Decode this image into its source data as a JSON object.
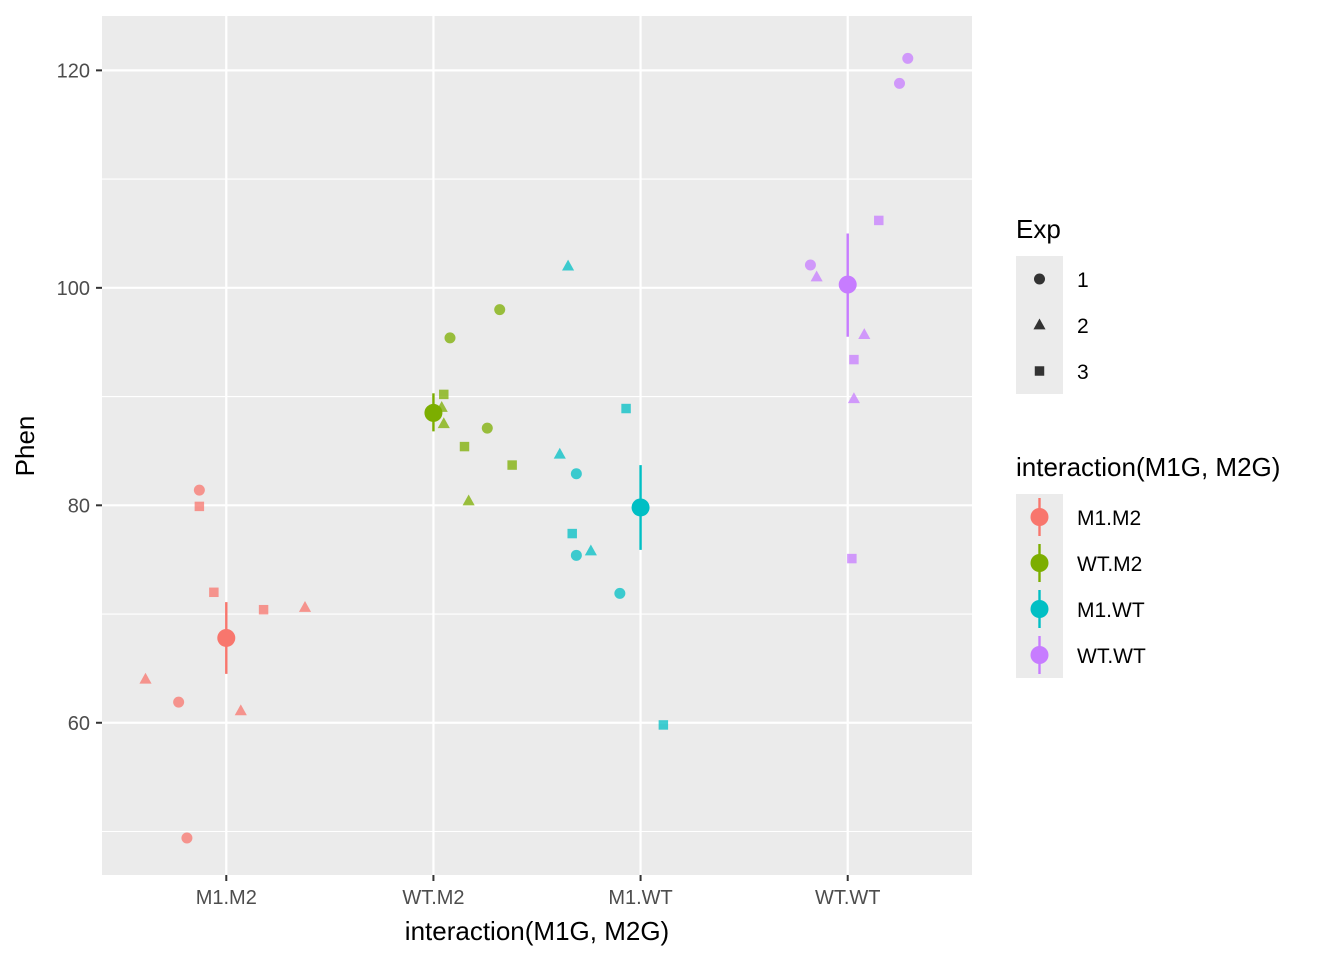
{
  "chart_data": {
    "type": "scatter",
    "title": "",
    "xlabel": "interaction(M1G, M2G)",
    "ylabel": "Phen",
    "categories": [
      "M1.M2",
      "WT.M2",
      "M1.WT",
      "WT.WT"
    ],
    "ylim": [
      46,
      125
    ],
    "yticks": [
      60,
      80,
      100,
      120
    ],
    "grid": true,
    "point_opacity": 0.75,
    "series": [
      {
        "name": "M1.M2",
        "color": "#F8766D",
        "mean": 67.8,
        "lower": 64.5,
        "upper": 71.1,
        "points": [
          {
            "x": -0.13,
            "y": 81.4,
            "exp": "1"
          },
          {
            "x": -0.23,
            "y": 61.9,
            "exp": "1"
          },
          {
            "x": -0.19,
            "y": 49.4,
            "exp": "1"
          },
          {
            "x": -0.39,
            "y": 64.0,
            "exp": "2"
          },
          {
            "x": 0.07,
            "y": 61.1,
            "exp": "2"
          },
          {
            "x": 0.38,
            "y": 70.6,
            "exp": "2"
          },
          {
            "x": -0.13,
            "y": 79.9,
            "exp": "3"
          },
          {
            "x": -0.06,
            "y": 72.0,
            "exp": "3"
          },
          {
            "x": 0.18,
            "y": 70.4,
            "exp": "3"
          }
        ]
      },
      {
        "name": "WT.M2",
        "color": "#7CAE00",
        "mean": 88.5,
        "lower": 86.8,
        "upper": 90.3,
        "points": [
          {
            "x": 0.08,
            "y": 95.4,
            "exp": "1"
          },
          {
            "x": 0.32,
            "y": 98.0,
            "exp": "1"
          },
          {
            "x": 0.26,
            "y": 87.1,
            "exp": "1"
          },
          {
            "x": 0.04,
            "y": 89.0,
            "exp": "2"
          },
          {
            "x": 0.05,
            "y": 87.5,
            "exp": "2"
          },
          {
            "x": 0.17,
            "y": 80.4,
            "exp": "2"
          },
          {
            "x": 0.05,
            "y": 90.2,
            "exp": "3"
          },
          {
            "x": 0.15,
            "y": 85.4,
            "exp": "3"
          },
          {
            "x": 0.38,
            "y": 83.7,
            "exp": "3"
          }
        ]
      },
      {
        "name": "M1.WT",
        "color": "#00BFC4",
        "mean": 79.8,
        "lower": 75.9,
        "upper": 83.7,
        "points": [
          {
            "x": -0.31,
            "y": 75.4,
            "exp": "1"
          },
          {
            "x": -0.31,
            "y": 82.9,
            "exp": "1"
          },
          {
            "x": -0.1,
            "y": 71.9,
            "exp": "1"
          },
          {
            "x": -0.35,
            "y": 102.0,
            "exp": "2"
          },
          {
            "x": -0.39,
            "y": 84.7,
            "exp": "2"
          },
          {
            "x": -0.24,
            "y": 75.8,
            "exp": "2"
          },
          {
            "x": -0.07,
            "y": 88.9,
            "exp": "3"
          },
          {
            "x": -0.33,
            "y": 77.4,
            "exp": "3"
          },
          {
            "x": 0.11,
            "y": 59.8,
            "exp": "3"
          }
        ]
      },
      {
        "name": "WT.WT",
        "color": "#C77CFF",
        "mean": 100.3,
        "lower": 95.5,
        "upper": 105.0,
        "points": [
          {
            "x": -0.18,
            "y": 102.1,
            "exp": "1"
          },
          {
            "x": 0.25,
            "y": 118.8,
            "exp": "1"
          },
          {
            "x": 0.29,
            "y": 121.1,
            "exp": "1"
          },
          {
            "x": -0.15,
            "y": 101.0,
            "exp": "2"
          },
          {
            "x": 0.08,
            "y": 95.7,
            "exp": "2"
          },
          {
            "x": 0.03,
            "y": 89.8,
            "exp": "2"
          },
          {
            "x": 0.15,
            "y": 106.2,
            "exp": "3"
          },
          {
            "x": 0.03,
            "y": 93.4,
            "exp": "3"
          },
          {
            "x": 0.02,
            "y": 75.1,
            "exp": "3"
          }
        ]
      }
    ],
    "legends": [
      {
        "title": "Exp",
        "type": "shape",
        "entries": [
          {
            "label": "1",
            "shape": "circle"
          },
          {
            "label": "2",
            "shape": "triangle"
          },
          {
            "label": "3",
            "shape": "square"
          }
        ]
      },
      {
        "title": "interaction(M1G, M2G)",
        "type": "color",
        "entries": [
          {
            "label": "M1.M2",
            "color": "#F8766D"
          },
          {
            "label": "WT.M2",
            "color": "#7CAE00"
          },
          {
            "label": "M1.WT",
            "color": "#00BFC4"
          },
          {
            "label": "WT.WT",
            "color": "#C77CFF"
          }
        ]
      }
    ],
    "legend_position": "right"
  },
  "colors": {
    "panel_background": "#EBEBEB",
    "grid_major": "#FFFFFF",
    "axis_text": "#4D4D4D",
    "legend_key_background": "#EBEBEB",
    "legend_shape_fill": "#333333"
  }
}
